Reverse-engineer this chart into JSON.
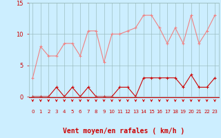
{
  "hours": [
    0,
    1,
    2,
    3,
    4,
    5,
    6,
    7,
    8,
    9,
    10,
    11,
    12,
    13,
    14,
    15,
    16,
    17,
    18,
    19,
    20,
    21,
    22,
    23
  ],
  "rafales": [
    3,
    8,
    6.5,
    6.5,
    8.5,
    8.5,
    6.5,
    10.5,
    10.5,
    5.5,
    10,
    10,
    10.5,
    11,
    13,
    13,
    11,
    8.5,
    11,
    8.5,
    13,
    8.5,
    10.5,
    13
  ],
  "moyen": [
    0,
    0,
    0,
    1.5,
    0,
    1.5,
    0,
    1.5,
    0,
    0,
    0,
    1.5,
    1.5,
    0,
    3,
    3,
    3,
    3,
    3,
    1.5,
    3.5,
    1.5,
    1.5,
    3
  ],
  "rafales_color": "#f08080",
  "moyen_color": "#cc0000",
  "arrow_color": "#cc0000",
  "bg_color": "#cceeff",
  "grid_color": "#99bbbb",
  "xlabel": "Vent moyen/en rafales ( km/h )",
  "ylim": [
    0,
    15
  ],
  "yticks": [
    0,
    5,
    10,
    15
  ],
  "xlabel_fontsize": 7,
  "tick_fontsize": 6
}
